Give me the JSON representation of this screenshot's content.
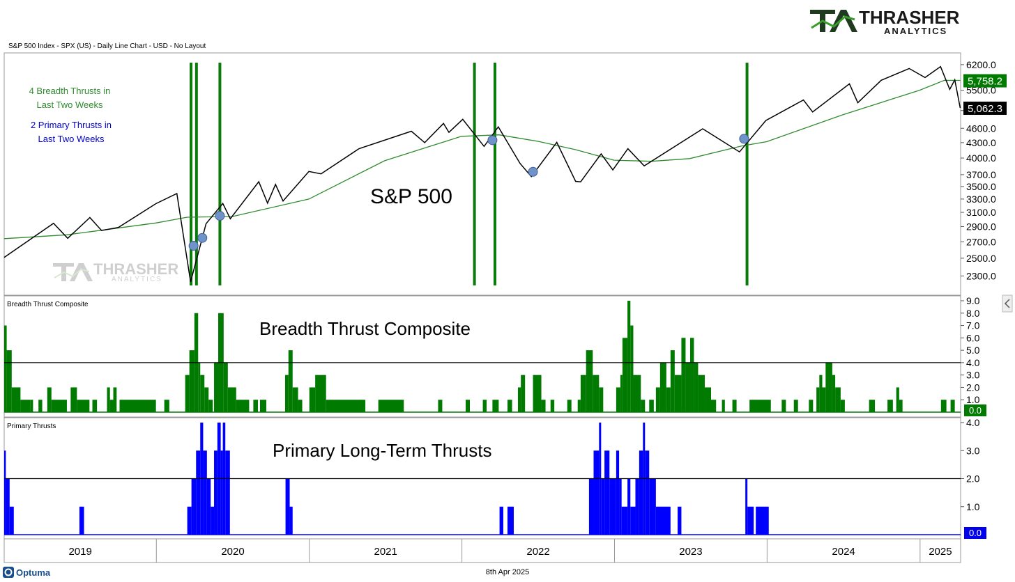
{
  "header": {
    "subtitle": "S&P 500 Index - SPX (US) - Daily Line Chart - USD - No Layout",
    "logo_primary": "THRASHER",
    "logo_secondary": "ANALYTICS",
    "watermark_primary": "THRASHER",
    "watermark_secondary": "ANALYTICS"
  },
  "footer": {
    "brand": "Optuma",
    "date": "8th Apr 2025"
  },
  "colors": {
    "price_line": "#000000",
    "moving_average": "#2e8b2e",
    "thrust_line": "#0a7a0a",
    "breadth_fill": "#007a00",
    "primary_fill": "#0000ff",
    "marker": "#6f93c8"
  },
  "chart_data": [
    {
      "type": "line",
      "panel_label": "",
      "title": "S&P 500",
      "annotations": [
        {
          "text": "4 Breadth Thrusts in Last Two Weeks",
          "color": "#2e8b2e"
        },
        {
          "text": "2 Primary Thrusts in Last Two Weeks",
          "color": "#0000cc"
        }
      ],
      "y_scale": "log",
      "ylim": [
        2200,
        6300
      ],
      "y_ticks": [
        "6200.0",
        "5500.0",
        "5000.0",
        "4600.0",
        "4300.0",
        "4000.0",
        "3700.0",
        "3500.0",
        "3300.0",
        "3100.0",
        "2900.0",
        "2700.0",
        "2500.0",
        "2300.0"
      ],
      "last_value_labels": [
        {
          "text": "5,758.2",
          "series": "moving_average"
        },
        {
          "text": "5,062.3",
          "series": "price"
        }
      ],
      "x_axis": [
        "2019",
        "2020",
        "2021",
        "2022",
        "2023",
        "2024",
        "2025"
      ],
      "series": [
        {
          "key": "price",
          "x": [
            "2019-01-02",
            "2019-04-30",
            "2019-06-03",
            "2019-07-26",
            "2019-08-23",
            "2019-10-02",
            "2019-12-31",
            "2020-02-19",
            "2020-03-23",
            "2020-04-29",
            "2020-06-08",
            "2020-06-26",
            "2020-09-02",
            "2020-09-23",
            "2020-10-12",
            "2020-10-30",
            "2020-12-31",
            "2021-01-29",
            "2021-04-30",
            "2021-09-02",
            "2021-10-04",
            "2021-11-18",
            "2021-12-01",
            "2022-01-03",
            "2022-02-23",
            "2022-03-29",
            "2022-05-20",
            "2022-06-16",
            "2022-08-16",
            "2022-09-30",
            "2022-10-12",
            "2022-11-30",
            "2022-12-28",
            "2023-02-02",
            "2023-03-13",
            "2023-07-31",
            "2023-10-27",
            "2023-12-29",
            "2024-03-28",
            "2024-04-19",
            "2024-07-16",
            "2024-08-05",
            "2024-09-30",
            "2024-12-06",
            "2025-01-13",
            "2025-02-19",
            "2025-03-13",
            "2025-03-25",
            "2025-04-07"
          ],
          "y": [
            2510,
            2945,
            2745,
            3025,
            2847,
            2887,
            3230,
            3386,
            2237,
            2940,
            3232,
            3009,
            3580,
            3237,
            3534,
            3270,
            3756,
            3714,
            4181,
            4537,
            4300,
            4705,
            4513,
            4797,
            4225,
            4631,
            3901,
            3666,
            4305,
            3586,
            3577,
            4080,
            3783,
            4180,
            3855,
            4589,
            4117,
            4770,
            5254,
            4967,
            5667,
            5186,
            5762,
            6090,
            5836,
            6144,
            5521,
            5776,
            5062
          ]
        },
        {
          "key": "moving_average",
          "x": [
            "2019-01-02",
            "2019-06-01",
            "2020-01-01",
            "2020-03-15",
            "2020-07-01",
            "2020-12-31",
            "2021-06-30",
            "2021-12-31",
            "2022-03-31",
            "2022-06-30",
            "2022-09-30",
            "2022-12-31",
            "2023-03-31",
            "2023-06-30",
            "2023-10-31",
            "2023-12-31",
            "2024-06-30",
            "2024-12-31",
            "2025-02-28",
            "2025-04-07"
          ],
          "y": [
            2740,
            2790,
            2950,
            3030,
            3040,
            3300,
            3950,
            4430,
            4460,
            4330,
            4160,
            3960,
            3940,
            3990,
            4230,
            4320,
            4900,
            5500,
            5760,
            5758
          ]
        }
      ],
      "markers": [
        {
          "x": "2020-03-30",
          "y": 2650
        },
        {
          "x": "2020-04-20",
          "y": 2750
        },
        {
          "x": "2020-06-01",
          "y": 3050
        },
        {
          "x": "2022-03-15",
          "y": 4350
        },
        {
          "x": "2022-06-20",
          "y": 3750
        },
        {
          "x": "2023-11-07",
          "y": 4378
        }
      ],
      "thrust_dates": [
        "2020-03-24",
        "2020-04-06",
        "2020-06-01",
        "2022-01-31",
        "2022-03-21",
        "2023-11-14"
      ]
    },
    {
      "type": "bar",
      "panel_label": "Breadth Thrust Composite",
      "title": "Breadth Thrust Composite",
      "ylim": [
        0,
        9
      ],
      "y_ticks": [
        "9.0",
        "8.0",
        "7.0",
        "6.0",
        "5.0",
        "4.0",
        "3.0",
        "2.0",
        "1.0"
      ],
      "threshold": 4.0,
      "last_value_label": "0.0",
      "bars": [
        {
          "start": "2019-01-02",
          "end": "2019-01-08",
          "v": 7
        },
        {
          "start": "2019-01-08",
          "end": "2019-01-20",
          "v": 5
        },
        {
          "start": "2019-01-20",
          "end": "2019-02-10",
          "v": 2
        },
        {
          "start": "2019-02-10",
          "end": "2019-03-05",
          "v": 1
        },
        {
          "start": "2019-03-05",
          "end": "2019-03-12",
          "v": 1
        },
        {
          "start": "2019-03-25",
          "end": "2019-04-03",
          "v": 1
        },
        {
          "start": "2019-04-15",
          "end": "2019-04-25",
          "v": 2
        },
        {
          "start": "2019-04-25",
          "end": "2019-06-01",
          "v": 1
        },
        {
          "start": "2019-06-10",
          "end": "2019-06-25",
          "v": 2
        },
        {
          "start": "2019-06-25",
          "end": "2019-07-25",
          "v": 1
        },
        {
          "start": "2019-08-01",
          "end": "2019-08-12",
          "v": 1
        },
        {
          "start": "2019-09-05",
          "end": "2019-09-12",
          "v": 2
        },
        {
          "start": "2019-09-12",
          "end": "2019-09-20",
          "v": 1
        },
        {
          "start": "2019-09-20",
          "end": "2019-09-28",
          "v": 2
        },
        {
          "start": "2019-10-05",
          "end": "2019-12-31",
          "v": 1
        },
        {
          "start": "2020-01-20",
          "end": "2020-02-01",
          "v": 1
        },
        {
          "start": "2020-03-10",
          "end": "2020-03-20",
          "v": 3
        },
        {
          "start": "2020-03-20",
          "end": "2020-04-01",
          "v": 5
        },
        {
          "start": "2020-04-01",
          "end": "2020-04-10",
          "v": 8
        },
        {
          "start": "2020-04-10",
          "end": "2020-04-15",
          "v": 4
        },
        {
          "start": "2020-04-15",
          "end": "2020-04-25",
          "v": 3
        },
        {
          "start": "2020-04-25",
          "end": "2020-05-05",
          "v": 2
        },
        {
          "start": "2020-05-05",
          "end": "2020-05-15",
          "v": 1
        },
        {
          "start": "2020-05-18",
          "end": "2020-05-28",
          "v": 4
        },
        {
          "start": "2020-05-28",
          "end": "2020-06-10",
          "v": 8
        },
        {
          "start": "2020-06-10",
          "end": "2020-06-20",
          "v": 4
        },
        {
          "start": "2020-06-20",
          "end": "2020-07-10",
          "v": 2
        },
        {
          "start": "2020-07-10",
          "end": "2020-08-10",
          "v": 1
        },
        {
          "start": "2020-08-20",
          "end": "2020-08-31",
          "v": 1
        },
        {
          "start": "2020-09-05",
          "end": "2020-09-20",
          "v": 1
        },
        {
          "start": "2020-11-04",
          "end": "2020-11-12",
          "v": 3
        },
        {
          "start": "2020-11-12",
          "end": "2020-11-22",
          "v": 5
        },
        {
          "start": "2020-11-22",
          "end": "2020-12-05",
          "v": 2
        },
        {
          "start": "2020-12-05",
          "end": "2020-12-15",
          "v": 1
        },
        {
          "start": "2021-01-01",
          "end": "2021-01-15",
          "v": 2
        },
        {
          "start": "2021-01-15",
          "end": "2021-02-10",
          "v": 3
        },
        {
          "start": "2021-02-10",
          "end": "2021-05-15",
          "v": 1
        },
        {
          "start": "2021-06-15",
          "end": "2021-08-15",
          "v": 1
        },
        {
          "start": "2021-11-05",
          "end": "2021-11-15",
          "v": 1
        },
        {
          "start": "2022-01-10",
          "end": "2022-01-20",
          "v": 1
        },
        {
          "start": "2022-02-20",
          "end": "2022-03-01",
          "v": 1
        },
        {
          "start": "2022-03-15",
          "end": "2022-03-30",
          "v": 1
        },
        {
          "start": "2022-04-20",
          "end": "2022-05-01",
          "v": 1
        },
        {
          "start": "2022-05-15",
          "end": "2022-05-22",
          "v": 2
        },
        {
          "start": "2022-05-22",
          "end": "2022-06-01",
          "v": 3
        },
        {
          "start": "2022-06-20",
          "end": "2022-07-10",
          "v": 3
        },
        {
          "start": "2022-07-10",
          "end": "2022-07-20",
          "v": 1
        },
        {
          "start": "2022-08-01",
          "end": "2022-08-10",
          "v": 1
        },
        {
          "start": "2022-09-10",
          "end": "2022-09-20",
          "v": 1
        },
        {
          "start": "2022-10-05",
          "end": "2022-10-12",
          "v": 1
        },
        {
          "start": "2022-10-12",
          "end": "2022-10-25",
          "v": 3
        },
        {
          "start": "2022-10-25",
          "end": "2022-11-10",
          "v": 5
        },
        {
          "start": "2022-11-10",
          "end": "2022-11-25",
          "v": 3
        },
        {
          "start": "2022-11-25",
          "end": "2022-12-05",
          "v": 2
        },
        {
          "start": "2023-01-05",
          "end": "2023-01-15",
          "v": 2
        },
        {
          "start": "2023-01-15",
          "end": "2023-01-20",
          "v": 3
        },
        {
          "start": "2023-01-20",
          "end": "2023-02-01",
          "v": 6
        },
        {
          "start": "2023-02-01",
          "end": "2023-02-08",
          "v": 9
        },
        {
          "start": "2023-02-08",
          "end": "2023-02-15",
          "v": 7
        },
        {
          "start": "2023-02-15",
          "end": "2023-03-05",
          "v": 3
        },
        {
          "start": "2023-03-05",
          "end": "2023-03-15",
          "v": 1
        },
        {
          "start": "2023-03-25",
          "end": "2023-04-05",
          "v": 1
        },
        {
          "start": "2023-04-10",
          "end": "2023-04-20",
          "v": 2
        },
        {
          "start": "2023-04-20",
          "end": "2023-05-05",
          "v": 4
        },
        {
          "start": "2023-05-05",
          "end": "2023-05-15",
          "v": 2
        },
        {
          "start": "2023-05-15",
          "end": "2023-05-25",
          "v": 5
        },
        {
          "start": "2023-05-25",
          "end": "2023-06-10",
          "v": 3
        },
        {
          "start": "2023-06-10",
          "end": "2023-06-20",
          "v": 6
        },
        {
          "start": "2023-06-20",
          "end": "2023-07-01",
          "v": 4
        },
        {
          "start": "2023-07-01",
          "end": "2023-07-10",
          "v": 6
        },
        {
          "start": "2023-07-10",
          "end": "2023-07-20",
          "v": 4
        },
        {
          "start": "2023-07-20",
          "end": "2023-08-05",
          "v": 3
        },
        {
          "start": "2023-08-05",
          "end": "2023-08-20",
          "v": 2
        },
        {
          "start": "2023-08-20",
          "end": "2023-09-01",
          "v": 1
        },
        {
          "start": "2023-09-15",
          "end": "2023-09-22",
          "v": 1
        },
        {
          "start": "2023-10-10",
          "end": "2023-10-20",
          "v": 1
        },
        {
          "start": "2023-11-20",
          "end": "2024-01-10",
          "v": 1
        },
        {
          "start": "2024-02-05",
          "end": "2024-02-15",
          "v": 1
        },
        {
          "start": "2024-03-05",
          "end": "2024-03-15",
          "v": 1
        },
        {
          "start": "2024-04-10",
          "end": "2024-04-20",
          "v": 1
        },
        {
          "start": "2024-04-28",
          "end": "2024-05-05",
          "v": 2
        },
        {
          "start": "2024-05-05",
          "end": "2024-05-12",
          "v": 3
        },
        {
          "start": "2024-05-12",
          "end": "2024-05-20",
          "v": 2
        },
        {
          "start": "2024-05-20",
          "end": "2024-06-05",
          "v": 4
        },
        {
          "start": "2024-06-05",
          "end": "2024-06-12",
          "v": 3
        },
        {
          "start": "2024-06-12",
          "end": "2024-06-25",
          "v": 2
        },
        {
          "start": "2024-06-25",
          "end": "2024-07-05",
          "v": 1
        },
        {
          "start": "2024-09-01",
          "end": "2024-09-15",
          "v": 1
        },
        {
          "start": "2024-10-15",
          "end": "2024-10-28",
          "v": 1
        },
        {
          "start": "2024-11-05",
          "end": "2024-11-12",
          "v": 2
        },
        {
          "start": "2024-11-12",
          "end": "2024-11-20",
          "v": 1
        },
        {
          "start": "2025-02-20",
          "end": "2025-03-05",
          "v": 1
        },
        {
          "start": "2025-03-15",
          "end": "2025-03-25",
          "v": 1
        }
      ]
    },
    {
      "type": "bar",
      "panel_label": "Primary Thrusts",
      "title": "Primary Long-Term Thrusts",
      "ylim": [
        0,
        4
      ],
      "y_ticks": [
        "4.0",
        "3.0",
        "2.0",
        "1.0"
      ],
      "threshold": 2.0,
      "last_value_label": "0.0",
      "bars": [
        {
          "start": "2019-01-02",
          "end": "2019-01-06",
          "v": 3
        },
        {
          "start": "2019-01-06",
          "end": "2019-01-15",
          "v": 2
        },
        {
          "start": "2019-01-15",
          "end": "2019-01-25",
          "v": 1
        },
        {
          "start": "2019-07-01",
          "end": "2019-07-12",
          "v": 1
        },
        {
          "start": "2020-03-15",
          "end": "2020-03-25",
          "v": 1
        },
        {
          "start": "2020-03-25",
          "end": "2020-04-05",
          "v": 2
        },
        {
          "start": "2020-04-05",
          "end": "2020-04-15",
          "v": 3
        },
        {
          "start": "2020-04-15",
          "end": "2020-04-22",
          "v": 4
        },
        {
          "start": "2020-04-22",
          "end": "2020-05-01",
          "v": 3
        },
        {
          "start": "2020-05-01",
          "end": "2020-05-10",
          "v": 2
        },
        {
          "start": "2020-05-10",
          "end": "2020-05-18",
          "v": 1
        },
        {
          "start": "2020-05-18",
          "end": "2020-05-26",
          "v": 3
        },
        {
          "start": "2020-05-26",
          "end": "2020-06-03",
          "v": 4
        },
        {
          "start": "2020-06-03",
          "end": "2020-06-08",
          "v": 3
        },
        {
          "start": "2020-06-08",
          "end": "2020-06-14",
          "v": 4
        },
        {
          "start": "2020-06-14",
          "end": "2020-06-25",
          "v": 3
        },
        {
          "start": "2020-11-05",
          "end": "2020-11-15",
          "v": 2
        },
        {
          "start": "2020-11-15",
          "end": "2020-11-22",
          "v": 1
        },
        {
          "start": "2022-04-01",
          "end": "2022-04-10",
          "v": 1
        },
        {
          "start": "2022-04-20",
          "end": "2022-05-05",
          "v": 1
        },
        {
          "start": "2022-11-01",
          "end": "2022-11-12",
          "v": 2
        },
        {
          "start": "2022-11-12",
          "end": "2022-11-25",
          "v": 3
        },
        {
          "start": "2022-11-25",
          "end": "2022-11-30",
          "v": 4
        },
        {
          "start": "2022-11-30",
          "end": "2022-12-08",
          "v": 2
        },
        {
          "start": "2022-12-08",
          "end": "2022-12-20",
          "v": 3
        },
        {
          "start": "2022-12-20",
          "end": "2023-01-05",
          "v": 2
        },
        {
          "start": "2023-01-05",
          "end": "2023-01-12",
          "v": 3
        },
        {
          "start": "2023-01-12",
          "end": "2023-01-18",
          "v": 2
        },
        {
          "start": "2023-01-18",
          "end": "2023-02-01",
          "v": 1
        },
        {
          "start": "2023-02-01",
          "end": "2023-02-08",
          "v": 2
        },
        {
          "start": "2023-02-08",
          "end": "2023-02-20",
          "v": 1
        },
        {
          "start": "2023-02-20",
          "end": "2023-03-01",
          "v": 2
        },
        {
          "start": "2023-03-01",
          "end": "2023-03-10",
          "v": 3
        },
        {
          "start": "2023-03-10",
          "end": "2023-03-15",
          "v": 4
        },
        {
          "start": "2023-03-15",
          "end": "2023-03-25",
          "v": 3
        },
        {
          "start": "2023-03-25",
          "end": "2023-04-10",
          "v": 2
        },
        {
          "start": "2023-04-10",
          "end": "2023-05-15",
          "v": 1
        },
        {
          "start": "2023-06-01",
          "end": "2023-06-10",
          "v": 1
        },
        {
          "start": "2023-11-10",
          "end": "2023-11-15",
          "v": 2
        },
        {
          "start": "2023-11-15",
          "end": "2023-11-30",
          "v": 1
        },
        {
          "start": "2023-12-05",
          "end": "2024-01-05",
          "v": 1
        }
      ]
    }
  ]
}
